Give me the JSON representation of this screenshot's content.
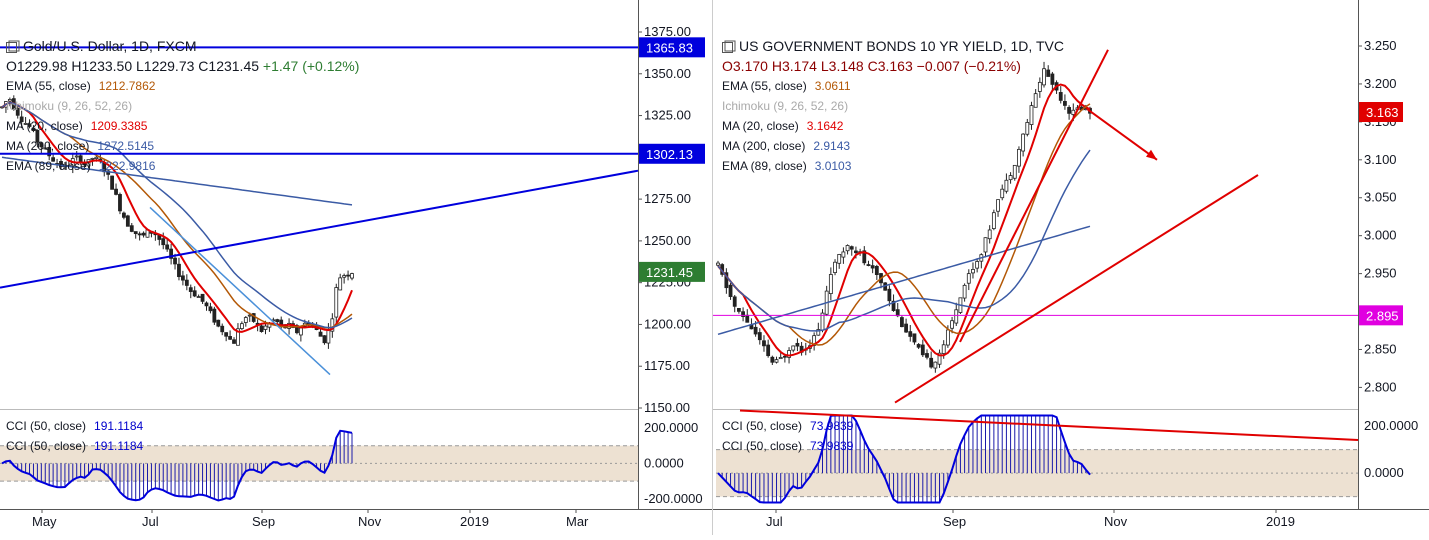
{
  "chart_data": [
    {
      "type": "candlestick",
      "title": "Gold/U.S. Dollar, 1D, FXCM",
      "ohlc": {
        "open": "O1229.98",
        "high": "H1233.50",
        "low": "L1229.73",
        "close": "C1231.45",
        "change": "+1.47 (+0.12%)"
      },
      "studies": [
        {
          "name": "EMA (55, close)",
          "value": "1212.7862",
          "color": "#b35806"
        },
        {
          "name": "Ichimoku (9, 26, 52, 26)",
          "value": "",
          "color": "#bbbbbb"
        },
        {
          "name": "MA (20, close)",
          "value": "1209.3385",
          "color": "#e00000"
        },
        {
          "name": "MA (200, close)",
          "value": "1272.5145",
          "color": "#3b5ba5"
        },
        {
          "name": "EMA (89, close)",
          "value": "1222.9816",
          "color": "#3b5ba5"
        }
      ],
      "y_ticks": [
        "1375.00",
        "1350.00",
        "1325.00",
        "1300.00",
        "1275.00",
        "1250.00",
        "1225.00",
        "1200.00",
        "1175.00",
        "1150.00"
      ],
      "ylim": [
        1150,
        1375
      ],
      "x_ticks": [
        "May",
        "Jul",
        "Sep",
        "Nov",
        "2019",
        "Mar"
      ],
      "price_tags": [
        {
          "label": "1365.83",
          "value": 1365.83,
          "color": "#0000dd"
        },
        {
          "label": "1302.13",
          "value": 1302.13,
          "color": "#0000dd"
        },
        {
          "label": "1231.45",
          "value": 1231.45,
          "color": "#2e7d32"
        }
      ],
      "approx_close_series": [
        1330,
        1336,
        1328,
        1322,
        1318,
        1310,
        1305,
        1300,
        1296,
        1294,
        1298,
        1300,
        1295,
        1300,
        1297,
        1290,
        1280,
        1268,
        1260,
        1255,
        1252,
        1256,
        1254,
        1248,
        1240,
        1232,
        1226,
        1220,
        1217,
        1212,
        1205,
        1198,
        1195,
        1188,
        1200,
        1205,
        1202,
        1196,
        1200,
        1203,
        1198,
        1199,
        1195,
        1200,
        1201,
        1196,
        1190,
        1200,
        1228,
        1230,
        1231.45
      ],
      "cci": {
        "label": "CCI (50, close)",
        "value": "191.1184",
        "ticks": [
          "200.0000",
          "0.0000",
          "-200.0000"
        ],
        "band": [
          -100,
          100
        ],
        "ylim": [
          -240,
          290
        ]
      }
    },
    {
      "type": "candlestick",
      "title": "US GOVERNMENT BONDS 10 YR YIELD, 1D, TVC",
      "ohlc": {
        "open": "O3.170",
        "high": "H3.174",
        "low": "L3.148",
        "close": "C3.163",
        "change": "−0.007 (−0.21%)"
      },
      "studies": [
        {
          "name": "EMA (55, close)",
          "value": "3.0611",
          "color": "#b35806"
        },
        {
          "name": "Ichimoku (9, 26, 52, 26)",
          "value": "",
          "color": "#bbbbbb"
        },
        {
          "name": "MA (20, close)",
          "value": "3.1642",
          "color": "#e00000"
        },
        {
          "name": "MA (200, close)",
          "value": "2.9143",
          "color": "#3b5ba5"
        },
        {
          "name": "EMA (89, close)",
          "value": "3.0103",
          "color": "#3b5ba5"
        }
      ],
      "y_ticks": [
        "3.250",
        "3.200",
        "3.150",
        "3.100",
        "3.050",
        "3.000",
        "2.950",
        "2.900",
        "2.850",
        "2.800"
      ],
      "ylim": [
        2.78,
        3.27
      ],
      "x_ticks": [
        "Jul",
        "Sep",
        "Nov",
        "2019"
      ],
      "price_tags": [
        {
          "label": "3.163",
          "value": 3.163,
          "color": "#e00000"
        },
        {
          "label": "2.895",
          "value": 2.895,
          "color": "#e000e0"
        }
      ],
      "approx_close_series": [
        2.96,
        2.93,
        2.9,
        2.89,
        2.87,
        2.85,
        2.83,
        2.84,
        2.86,
        2.85,
        2.86,
        2.88,
        2.95,
        2.97,
        2.99,
        2.98,
        2.96,
        2.95,
        2.93,
        2.9,
        2.88,
        2.86,
        2.84,
        2.83,
        2.85,
        2.88,
        2.92,
        2.95,
        2.97,
        3.0,
        3.05,
        3.07,
        3.1,
        3.14,
        3.18,
        3.22,
        3.2,
        3.18,
        3.16,
        3.17,
        3.163
      ],
      "cci": {
        "label": "CCI (50, close)",
        "value": "73.9839",
        "ticks": [
          "200.0000",
          "0.0000"
        ],
        "band": [
          -100,
          100
        ],
        "ylim": [
          -140,
          260
        ]
      }
    }
  ]
}
